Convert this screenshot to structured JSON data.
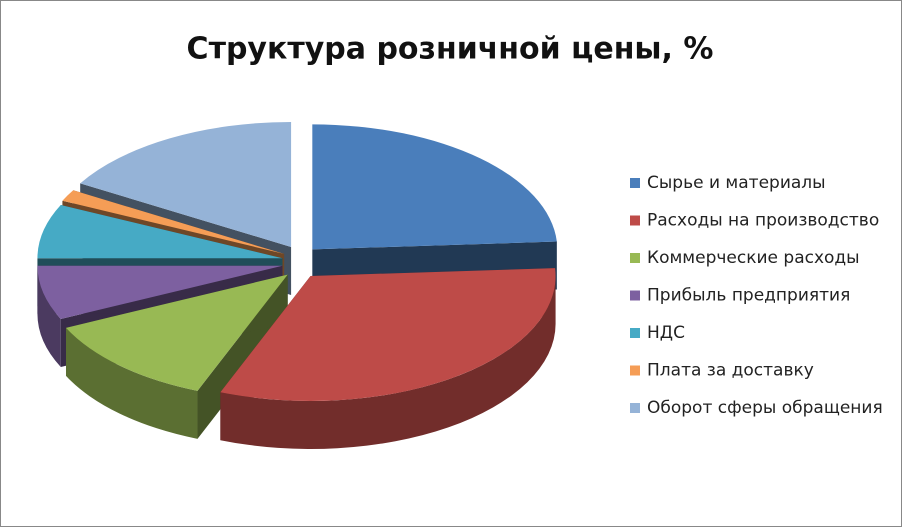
{
  "chart_data": {
    "type": "pie3d",
    "title": "Структура розничной цены, %",
    "categories": [
      "Сырье и материалы",
      "Расходы на производство",
      "Коммерческие расходы",
      "Прибыль предприятия",
      "НДС",
      "Плата за доставку",
      "Оборот сферы обращения"
    ],
    "values": [
      24,
      32,
      12,
      7,
      7,
      1.5,
      16.5
    ],
    "colors": [
      "#4a7ebb",
      "#be4b48",
      "#98b954",
      "#7d60a0",
      "#46aac5",
      "#f59d56",
      "#95b3d7"
    ],
    "legend": "right"
  }
}
